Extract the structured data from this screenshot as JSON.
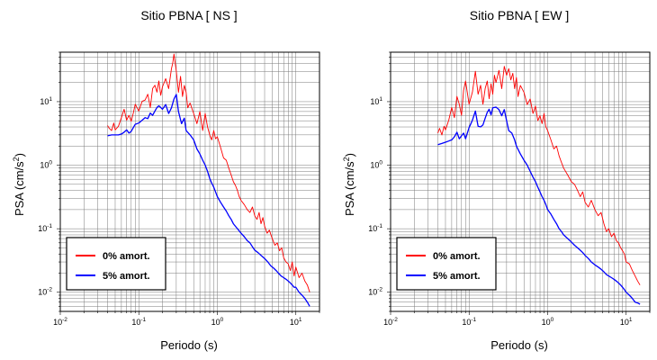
{
  "chart_data": [
    {
      "type": "line",
      "title": "Sitio PBNA [ NS ]",
      "xlabel": "Periodo (s)",
      "ylabel": "PSA (cm/s",
      "ylabel_sup": "2",
      "ylabel_close": ")",
      "x_scale": "log",
      "y_scale": "log",
      "xlim": [
        0.01,
        20
      ],
      "ylim": [
        0.005,
        60
      ],
      "x_ticks": [
        {
          "value": 0.01,
          "base": "10",
          "exp": "-2"
        },
        {
          "value": 0.1,
          "base": "10",
          "exp": "-1"
        },
        {
          "value": 1,
          "base": "10",
          "exp": "0"
        },
        {
          "value": 10,
          "base": "10",
          "exp": "1"
        }
      ],
      "y_ticks": [
        {
          "value": 0.01,
          "base": "10",
          "exp": "-2"
        },
        {
          "value": 0.1,
          "base": "10",
          "exp": "-1"
        },
        {
          "value": 1,
          "base": "10",
          "exp": "0"
        },
        {
          "value": 10,
          "base": "10",
          "exp": "1"
        }
      ],
      "grid": true,
      "legend_position": "bottom-left",
      "series": [
        {
          "name": "0% amort.",
          "color": "#ff0000",
          "x": [
            0.04,
            0.042,
            0.045,
            0.048,
            0.05,
            0.055,
            0.06,
            0.065,
            0.07,
            0.075,
            0.08,
            0.085,
            0.09,
            0.1,
            0.11,
            0.12,
            0.13,
            0.14,
            0.15,
            0.16,
            0.17,
            0.18,
            0.19,
            0.2,
            0.22,
            0.24,
            0.26,
            0.27,
            0.28,
            0.3,
            0.32,
            0.34,
            0.36,
            0.38,
            0.4,
            0.42,
            0.45,
            0.5,
            0.55,
            0.6,
            0.65,
            0.7,
            0.75,
            0.8,
            0.85,
            0.9,
            0.95,
            1.0,
            1.1,
            1.2,
            1.3,
            1.4,
            1.5,
            1.6,
            1.7,
            1.8,
            1.9,
            2.0,
            2.2,
            2.4,
            2.6,
            2.8,
            3.0,
            3.2,
            3.4,
            3.6,
            3.8,
            4.0,
            4.3,
            4.6,
            5.0,
            5.4,
            5.8,
            6.2,
            6.6,
            7.0,
            7.5,
            8.0,
            8.5,
            9.0,
            9.5,
            10,
            11,
            12,
            13,
            14,
            15
          ],
          "y": [
            4.2,
            3.8,
            3.5,
            4.6,
            3.6,
            4.1,
            5.6,
            7.6,
            5.1,
            6.1,
            4.9,
            6.6,
            9.1,
            7.1,
            10.1,
            10.6,
            13.1,
            8.1,
            16.1,
            18.1,
            14.1,
            21.1,
            12.6,
            17.1,
            23.0,
            16.0,
            33.0,
            40.0,
            56.0,
            30.0,
            14.0,
            25.0,
            12.0,
            18.0,
            14.0,
            8.0,
            9.5,
            6.5,
            4.5,
            7.0,
            3.5,
            6.5,
            4.0,
            3.0,
            2.5,
            3.5,
            2.6,
            2.8,
            1.9,
            1.3,
            1.2,
            0.9,
            0.7,
            0.55,
            0.48,
            0.4,
            0.32,
            0.28,
            0.24,
            0.2,
            0.18,
            0.22,
            0.16,
            0.14,
            0.18,
            0.12,
            0.15,
            0.11,
            0.085,
            0.095,
            0.07,
            0.055,
            0.06,
            0.045,
            0.05,
            0.035,
            0.03,
            0.028,
            0.022,
            0.03,
            0.018,
            0.025,
            0.017,
            0.02,
            0.015,
            0.013,
            0.01
          ]
        },
        {
          "name": "5% amort.",
          "color": "#0000ff",
          "x": [
            0.04,
            0.045,
            0.05,
            0.055,
            0.06,
            0.065,
            0.07,
            0.075,
            0.08,
            0.085,
            0.09,
            0.1,
            0.11,
            0.12,
            0.13,
            0.14,
            0.15,
            0.16,
            0.17,
            0.18,
            0.19,
            0.2,
            0.22,
            0.24,
            0.26,
            0.28,
            0.3,
            0.32,
            0.35,
            0.38,
            0.4,
            0.45,
            0.5,
            0.55,
            0.6,
            0.65,
            0.7,
            0.75,
            0.8,
            0.85,
            0.9,
            0.95,
            1.0,
            1.1,
            1.2,
            1.3,
            1.4,
            1.5,
            1.6,
            1.8,
            2.0,
            2.2,
            2.4,
            2.6,
            2.8,
            3.0,
            3.3,
            3.6,
            4.0,
            4.4,
            4.8,
            5.2,
            5.6,
            6.0,
            6.5,
            7.0,
            7.5,
            8.0,
            8.5,
            9.0,
            9.5,
            10,
            11,
            12,
            13,
            14,
            15
          ],
          "y": [
            2.9,
            3.0,
            3.0,
            3.0,
            3.1,
            3.3,
            3.6,
            3.2,
            3.4,
            3.9,
            4.4,
            4.6,
            5.1,
            5.6,
            5.4,
            6.6,
            6.1,
            7.1,
            8.1,
            8.6,
            8.1,
            7.6,
            9.0,
            6.5,
            8.0,
            11.0,
            13.0,
            7.0,
            4.5,
            5.5,
            3.5,
            3.0,
            2.5,
            1.8,
            1.5,
            1.2,
            1.0,
            0.8,
            0.62,
            0.52,
            0.45,
            0.38,
            0.32,
            0.26,
            0.22,
            0.19,
            0.16,
            0.14,
            0.12,
            0.1,
            0.085,
            0.075,
            0.065,
            0.06,
            0.052,
            0.046,
            0.042,
            0.038,
            0.034,
            0.03,
            0.026,
            0.024,
            0.022,
            0.02,
            0.018,
            0.017,
            0.016,
            0.015,
            0.014,
            0.013,
            0.012,
            0.012,
            0.01,
            0.009,
            0.008,
            0.007,
            0.006
          ]
        }
      ]
    },
    {
      "type": "line",
      "title": "Sitio PBNA [ EW ]",
      "xlabel": "Periodo (s)",
      "ylabel": "PSA (cm/s",
      "ylabel_sup": "2",
      "ylabel_close": ")",
      "x_scale": "log",
      "y_scale": "log",
      "xlim": [
        0.01,
        20
      ],
      "ylim": [
        0.005,
        60
      ],
      "x_ticks": [
        {
          "value": 0.01,
          "base": "10",
          "exp": "-2"
        },
        {
          "value": 0.1,
          "base": "10",
          "exp": "-1"
        },
        {
          "value": 1,
          "base": "10",
          "exp": "0"
        },
        {
          "value": 10,
          "base": "10",
          "exp": "1"
        }
      ],
      "y_ticks": [
        {
          "value": 0.01,
          "base": "10",
          "exp": "-2"
        },
        {
          "value": 0.1,
          "base": "10",
          "exp": "-1"
        },
        {
          "value": 1,
          "base": "10",
          "exp": "0"
        },
        {
          "value": 10,
          "base": "10",
          "exp": "1"
        }
      ],
      "grid": true,
      "legend_position": "bottom-left",
      "series": [
        {
          "name": "0% amort.",
          "color": "#ff0000",
          "x": [
            0.04,
            0.042,
            0.045,
            0.048,
            0.05,
            0.055,
            0.06,
            0.065,
            0.07,
            0.075,
            0.08,
            0.085,
            0.09,
            0.1,
            0.11,
            0.12,
            0.13,
            0.14,
            0.15,
            0.16,
            0.17,
            0.18,
            0.19,
            0.2,
            0.21,
            0.22,
            0.24,
            0.26,
            0.28,
            0.3,
            0.32,
            0.34,
            0.36,
            0.38,
            0.4,
            0.42,
            0.45,
            0.5,
            0.55,
            0.6,
            0.65,
            0.7,
            0.75,
            0.8,
            0.85,
            0.9,
            0.95,
            1.0,
            1.1,
            1.2,
            1.3,
            1.4,
            1.5,
            1.6,
            1.8,
            2.0,
            2.2,
            2.4,
            2.6,
            2.8,
            3.0,
            3.3,
            3.6,
            4.0,
            4.4,
            4.8,
            5.2,
            5.6,
            6.0,
            6.5,
            7.0,
            7.5,
            8.0,
            8.5,
            9.0,
            9.5,
            10,
            11,
            12,
            13,
            14,
            15
          ],
          "y": [
            3.2,
            3.8,
            3.0,
            4.1,
            3.6,
            5.1,
            8.1,
            5.6,
            12.1,
            9.1,
            6.1,
            15.1,
            21.1,
            9.1,
            14.1,
            30.1,
            13.1,
            18.1,
            9.1,
            16.1,
            21.1,
            11.1,
            19.1,
            13.1,
            26.0,
            20.0,
            31.0,
            16.0,
            36.0,
            26.0,
            33.0,
            22.0,
            28.0,
            16.0,
            24.0,
            12.0,
            18.0,
            14.0,
            9.0,
            11.0,
            6.5,
            8.5,
            5.0,
            6.0,
            4.5,
            6.5,
            4.0,
            3.5,
            2.5,
            1.8,
            2.0,
            1.4,
            1.1,
            0.9,
            0.7,
            0.55,
            0.5,
            0.4,
            0.32,
            0.38,
            0.26,
            0.22,
            0.28,
            0.2,
            0.16,
            0.18,
            0.12,
            0.09,
            0.1,
            0.075,
            0.085,
            0.065,
            0.06,
            0.05,
            0.045,
            0.04,
            0.03,
            0.028,
            0.022,
            0.018,
            0.015,
            0.013
          ]
        },
        {
          "name": "5% amort.",
          "color": "#0000ff",
          "x": [
            0.04,
            0.045,
            0.05,
            0.055,
            0.06,
            0.065,
            0.07,
            0.075,
            0.08,
            0.085,
            0.09,
            0.1,
            0.11,
            0.12,
            0.13,
            0.14,
            0.15,
            0.16,
            0.17,
            0.18,
            0.19,
            0.2,
            0.22,
            0.24,
            0.26,
            0.28,
            0.3,
            0.32,
            0.35,
            0.38,
            0.4,
            0.45,
            0.5,
            0.55,
            0.6,
            0.65,
            0.7,
            0.75,
            0.8,
            0.85,
            0.9,
            0.95,
            1.0,
            1.1,
            1.2,
            1.3,
            1.4,
            1.5,
            1.6,
            1.8,
            2.0,
            2.2,
            2.4,
            2.6,
            2.8,
            3.0,
            3.3,
            3.6,
            4.0,
            4.4,
            4.8,
            5.2,
            5.6,
            6.0,
            6.5,
            7.0,
            7.5,
            8.0,
            8.5,
            9.0,
            9.5,
            10,
            11,
            12,
            13,
            14,
            15
          ],
          "y": [
            2.1,
            2.2,
            2.3,
            2.4,
            2.5,
            2.8,
            3.3,
            2.6,
            2.9,
            3.2,
            2.6,
            3.9,
            5.1,
            7.1,
            4.1,
            4.0,
            4.3,
            5.5,
            6.8,
            7.6,
            6.2,
            8.0,
            8.2,
            7.5,
            6.0,
            7.5,
            5.0,
            3.5,
            3.2,
            2.5,
            2.0,
            1.5,
            1.2,
            1.0,
            0.8,
            0.65,
            0.55,
            0.45,
            0.38,
            0.32,
            0.28,
            0.24,
            0.2,
            0.17,
            0.14,
            0.12,
            0.1,
            0.09,
            0.08,
            0.07,
            0.062,
            0.055,
            0.05,
            0.046,
            0.042,
            0.038,
            0.034,
            0.03,
            0.027,
            0.025,
            0.023,
            0.021,
            0.019,
            0.018,
            0.017,
            0.016,
            0.015,
            0.014,
            0.013,
            0.012,
            0.011,
            0.01,
            0.009,
            0.008,
            0.007,
            0.0068,
            0.0065
          ]
        }
      ]
    }
  ]
}
